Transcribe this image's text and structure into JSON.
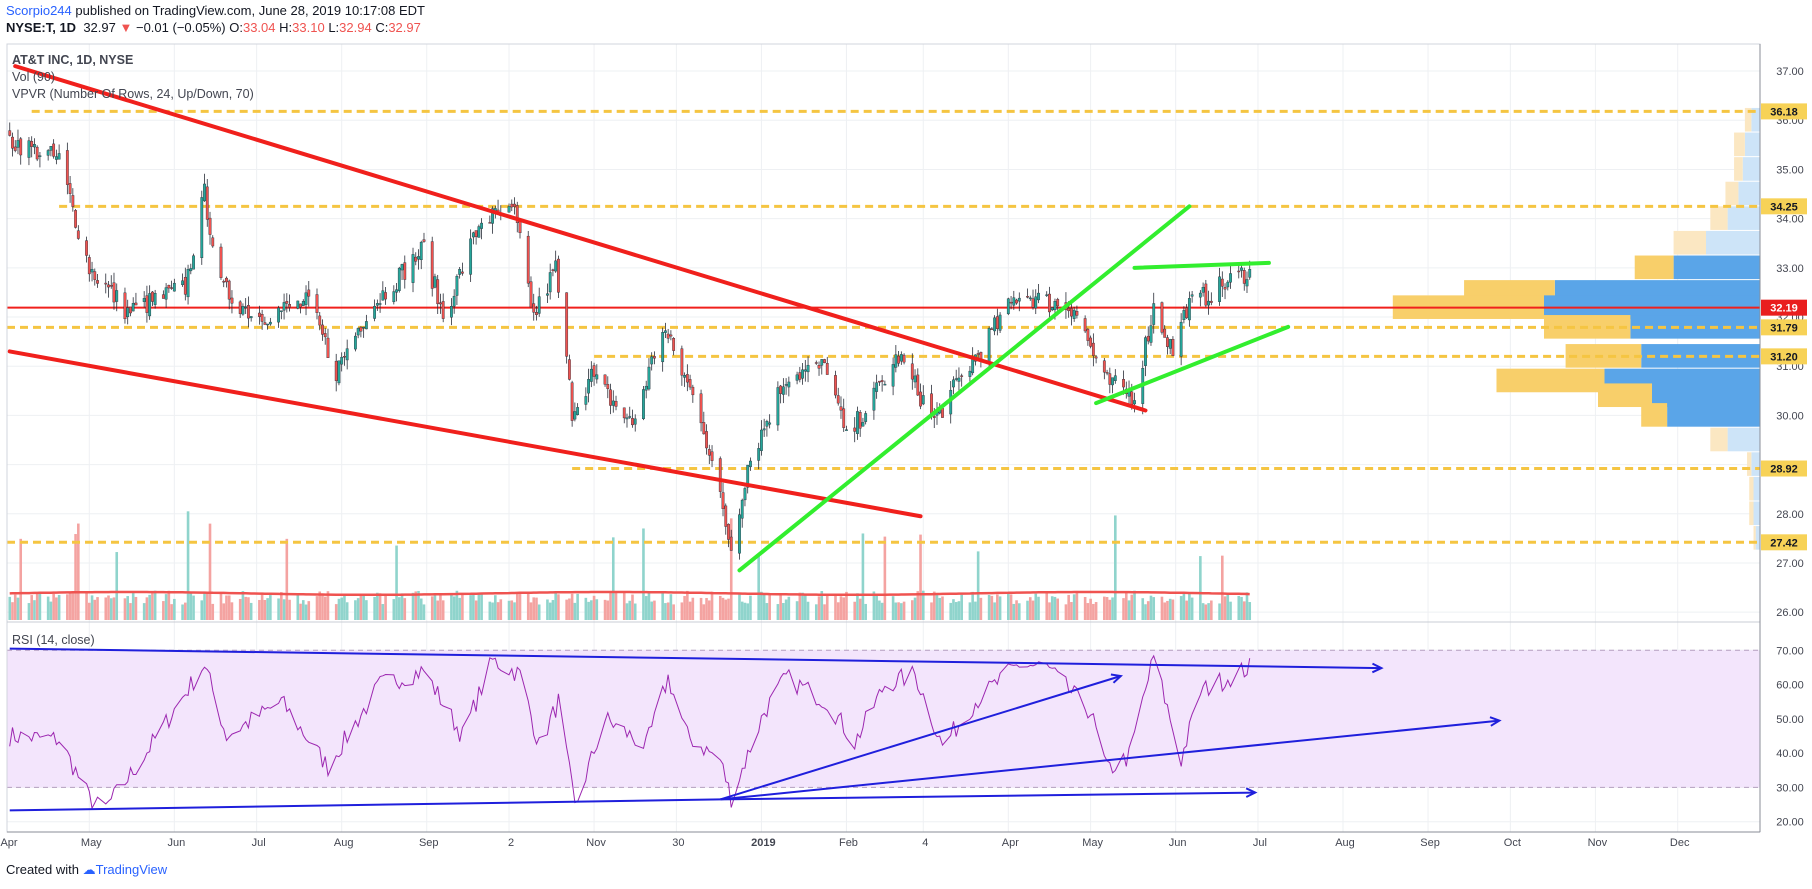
{
  "header": {
    "author": "Scorpio244",
    "published": " published on TradingView.com, June 28, 2019 10:17:08 EDT",
    "symbol": "NYSE:T, 1D",
    "last": "32.97",
    "arrow": "▼",
    "change": "−0.01 (−0.05%)",
    "o_label": "O:",
    "o": "33.04",
    "h_label": "H:",
    "h": "33.10",
    "l_label": "L:",
    "l": "32.94",
    "c_label": "C:",
    "c": "32.97"
  },
  "legend": {
    "title": "AT&T INC, 1D, NYSE",
    "volume": "Vol (90)",
    "vpvr": "VPVR (Number Of Rows, 24, Up/Down, 70)",
    "rsi": "RSI (14, close)"
  },
  "footer": {
    "prefix": "Created with",
    "brand": "TradingView"
  },
  "colors": {
    "up": "#26a69a",
    "down": "#ef5350",
    "trend_red": "#f0201c",
    "trend_green": "#32ee2e",
    "level": "#f5c542",
    "rsi_line": "#9c27b0",
    "rsi_band": "#f3e5fc",
    "rsi_trend": "#1f1fdc"
  },
  "chart_data": {
    "type": "candlestick",
    "x_tick_labels": [
      "Apr",
      "May",
      "Jun",
      "Jul",
      "Aug",
      "Sep",
      "2",
      "Nov",
      "30",
      "2019",
      "Feb",
      "4",
      "Apr",
      "May",
      "Jun",
      "Jul",
      "Aug",
      "Sep",
      "Oct",
      "Nov",
      "Dec"
    ],
    "price_axis": {
      "ticks": [
        "37.00",
        "36.00",
        "35.00",
        "34.00",
        "33.00",
        "32.00",
        "31.00",
        "30.00",
        "29.00",
        "28.00",
        "27.00",
        "26.00"
      ],
      "ylim": [
        25.8,
        37.55
      ]
    },
    "horizontal_levels": [
      {
        "label": "36.18",
        "value": 36.18,
        "style": "dashed-yellow"
      },
      {
        "label": "34.25",
        "value": 34.25,
        "style": "dashed-yellow"
      },
      {
        "label": "32.19",
        "value": 32.19,
        "style": "solid-red"
      },
      {
        "label": "31.79",
        "value": 31.79,
        "style": "dashed-yellow"
      },
      {
        "label": "31.20",
        "value": 31.2,
        "style": "dashed-yellow"
      },
      {
        "label": "28.92",
        "value": 28.92,
        "style": "dashed-yellow"
      },
      {
        "label": "27.42",
        "value": 27.42,
        "style": "dashed-yellow"
      }
    ],
    "price_anchors": [
      [
        "2018-04-02",
        35.6
      ],
      [
        "2018-04-20",
        35.2
      ],
      [
        "2018-05-01",
        33.0
      ],
      [
        "2018-05-15",
        32.1
      ],
      [
        "2018-06-05",
        32.6
      ],
      [
        "2018-06-12",
        34.5
      ],
      [
        "2018-06-18",
        32.6
      ],
      [
        "2018-07-01",
        32.0
      ],
      [
        "2018-07-20",
        32.3
      ],
      [
        "2018-07-30",
        30.9
      ],
      [
        "2018-08-10",
        32.1
      ],
      [
        "2018-08-31",
        33.4
      ],
      [
        "2018-09-07",
        32.0
      ],
      [
        "2018-09-21",
        34.0
      ],
      [
        "2018-10-03",
        34.1
      ],
      [
        "2018-10-10",
        32.0
      ],
      [
        "2018-10-18",
        33.0
      ],
      [
        "2018-10-24",
        30.1
      ],
      [
        "2018-10-31",
        30.8
      ],
      [
        "2018-11-15",
        29.8
      ],
      [
        "2018-11-26",
        31.8
      ],
      [
        "2018-12-10",
        30.0
      ],
      [
        "2018-12-21",
        27.3
      ],
      [
        "2018-12-27",
        29.0
      ],
      [
        "2019-01-10",
        30.8
      ],
      [
        "2019-01-25",
        31.0
      ],
      [
        "2019-02-01",
        29.5
      ],
      [
        "2019-02-20",
        31.2
      ],
      [
        "2019-03-05",
        29.9
      ],
      [
        "2019-03-20",
        31.2
      ],
      [
        "2019-04-05",
        32.5
      ],
      [
        "2019-04-15",
        32.3
      ],
      [
        "2019-04-25",
        32.2
      ],
      [
        "2019-05-06",
        30.7
      ],
      [
        "2019-05-17",
        30.4
      ],
      [
        "2019-05-24",
        32.2
      ],
      [
        "2019-05-31",
        31.3
      ],
      [
        "2019-06-05",
        32.2
      ],
      [
        "2019-06-20",
        32.7
      ],
      [
        "2019-06-28",
        32.97
      ]
    ],
    "volume_series": {
      "name": "Vol (90)",
      "moving_average_color": "#ef5350"
    },
    "rsi": {
      "title": "RSI (14, close)",
      "ticks": [
        "70.00",
        "60.00",
        "50.00",
        "40.00",
        "30.00",
        "20.00"
      ],
      "band": [
        30,
        70
      ],
      "ylim": [
        17,
        73
      ],
      "anchors": [
        [
          "2018-04-02",
          45
        ],
        [
          "2018-04-20",
          44
        ],
        [
          "2018-05-01",
          27
        ],
        [
          "2018-05-06",
          23
        ],
        [
          "2018-05-20",
          38
        ],
        [
          "2018-06-12",
          66
        ],
        [
          "2018-06-20",
          45
        ],
        [
          "2018-07-10",
          55
        ],
        [
          "2018-07-27",
          36
        ],
        [
          "2018-08-15",
          60
        ],
        [
          "2018-08-31",
          64
        ],
        [
          "2018-09-14",
          45
        ],
        [
          "2018-09-25",
          67
        ],
        [
          "2018-10-05",
          63
        ],
        [
          "2018-10-12",
          42
        ],
        [
          "2018-10-19",
          55
        ],
        [
          "2018-10-25",
          24
        ],
        [
          "2018-11-05",
          50
        ],
        [
          "2018-11-20",
          42
        ],
        [
          "2018-11-28",
          62
        ],
        [
          "2018-12-05",
          45
        ],
        [
          "2018-12-17",
          38
        ],
        [
          "2018-12-21",
          27
        ],
        [
          "2019-01-02",
          52
        ],
        [
          "2019-01-10",
          62
        ],
        [
          "2019-01-25",
          55
        ],
        [
          "2019-02-04",
          43
        ],
        [
          "2019-02-15",
          60
        ],
        [
          "2019-02-26",
          63
        ],
        [
          "2019-03-08",
          42
        ],
        [
          "2019-03-20",
          55
        ],
        [
          "2019-04-05",
          66
        ],
        [
          "2019-04-15",
          65
        ],
        [
          "2019-05-01",
          52
        ],
        [
          "2019-05-07",
          35
        ],
        [
          "2019-05-15",
          39
        ],
        [
          "2019-05-24",
          68
        ],
        [
          "2019-06-03",
          38
        ],
        [
          "2019-06-10",
          58
        ],
        [
          "2019-06-28",
          65
        ]
      ]
    },
    "annotations": {
      "price_trendlines": [
        {
          "color": "red",
          "from": [
            "2018-04-04",
            37.1
          ],
          "to": [
            "2019-05-21",
            30.1
          ]
        },
        {
          "color": "red",
          "from": [
            "2018-04-02",
            31.3
          ],
          "to": [
            "2019-02-28",
            27.95
          ]
        },
        {
          "color": "green",
          "from": [
            "2018-12-24",
            26.85
          ],
          "to": [
            "2019-06-06",
            34.25
          ]
        },
        {
          "color": "green",
          "from": [
            "2019-05-03",
            30.25
          ],
          "to": [
            "2019-07-12",
            31.8
          ]
        },
        {
          "color": "green",
          "from": [
            "2019-05-17",
            33.0
          ],
          "to": [
            "2019-07-05",
            33.1
          ]
        }
      ],
      "rsi_trendlines": [
        {
          "from": [
            "2018-04-02",
            70.5
          ],
          "to": [
            "2019-08-15",
            64.8
          ],
          "arrow": true
        },
        {
          "from": [
            "2018-04-02",
            23.3
          ],
          "to": [
            "2018-12-17",
            26.5
          ],
          "arrow": false
        },
        {
          "from": [
            "2018-12-17",
            26.5
          ],
          "to": [
            "2019-05-12",
            62.5
          ],
          "arrow": true
        },
        {
          "from": [
            "2018-12-17",
            26.5
          ],
          "to": [
            "2019-06-30",
            28.5
          ],
          "arrow": true
        },
        {
          "from": [
            "2018-12-17",
            26.5
          ],
          "to": [
            "2019-09-27",
            49.5
          ],
          "arrow": true
        }
      ]
    },
    "volume_profile": {
      "note": "VPVR bars aligned to price rows",
      "rows": [
        {
          "price": 32.5,
          "up": 0.42,
          "down": 0.95
        },
        {
          "price": 33.0,
          "up": 0.18,
          "down": 0.4
        },
        {
          "price": 32.19,
          "up": 0.7,
          "down": 1.0
        },
        {
          "price": 31.79,
          "up": 0.4,
          "down": 0.6
        },
        {
          "price": 31.2,
          "up": 0.35,
          "down": 0.55
        },
        {
          "price": 30.7,
          "up": 0.5,
          "down": 0.72
        },
        {
          "price": 30.4,
          "up": 0.25,
          "down": 0.5
        },
        {
          "price": 30.0,
          "up": 0.12,
          "down": 0.43
        },
        {
          "price": 29.5,
          "up": 0.08,
          "down": 0.15
        },
        {
          "price": 33.5,
          "up": 0.15,
          "down": 0.25
        },
        {
          "price": 34.0,
          "up": 0.08,
          "down": 0.15
        },
        {
          "price": 34.5,
          "up": 0.06,
          "down": 0.1
        },
        {
          "price": 35.0,
          "up": 0.04,
          "down": 0.08
        },
        {
          "price": 35.5,
          "up": 0.05,
          "down": 0.07
        },
        {
          "price": 36.0,
          "up": 0.03,
          "down": 0.04
        },
        {
          "price": 29.0,
          "up": 0.02,
          "down": 0.04
        },
        {
          "price": 28.5,
          "up": 0.02,
          "down": 0.03
        },
        {
          "price": 28.0,
          "up": 0.02,
          "down": 0.03
        },
        {
          "price": 27.5,
          "up": 0.01,
          "down": 0.02
        }
      ]
    }
  }
}
